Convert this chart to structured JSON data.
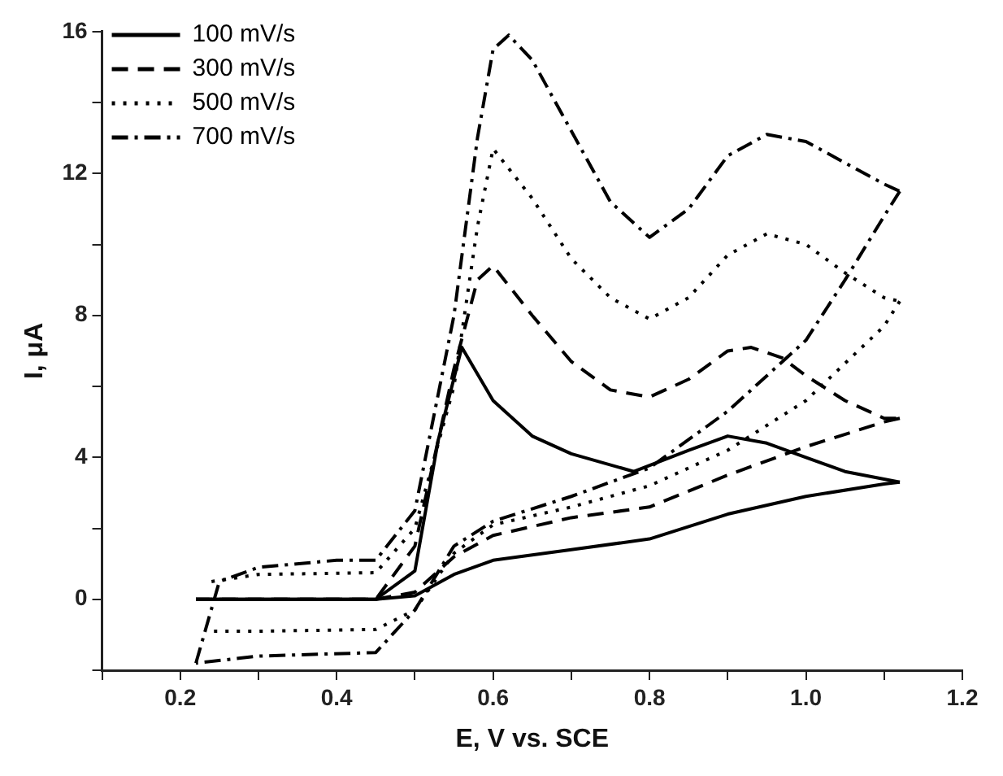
{
  "chart_data": {
    "type": "line",
    "xlabel": "E, V vs. SCE",
    "ylabel": "I, μA",
    "xlim": [
      0.1,
      1.2
    ],
    "ylim": [
      -2,
      16
    ],
    "xticks": [
      {
        "value": 0.1,
        "label": null
      },
      0.2,
      {
        "value": 0.3,
        "label": null
      },
      0.4,
      {
        "value": 0.5,
        "label": null
      },
      0.6,
      {
        "value": 0.7,
        "label": null
      },
      0.8,
      {
        "value": 0.9,
        "label": null
      },
      {
        "value": 1.0,
        "label": "1.0"
      },
      {
        "value": 1.1,
        "label": null
      },
      1.2
    ],
    "yticks": [
      {
        "value": -2,
        "label": null
      },
      0,
      {
        "value": 2,
        "label": null
      },
      4,
      {
        "value": 6,
        "label": null
      },
      8,
      {
        "value": 10,
        "label": null
      },
      12,
      {
        "value": 14,
        "label": null
      },
      16
    ],
    "grid": false,
    "legend": "top left",
    "marker": "none",
    "series": [
      {
        "name": "100 mV/s",
        "color": "#000000",
        "line_style": "solid",
        "x": [
          0.22,
          0.3,
          0.4,
          0.45,
          0.5,
          0.53,
          0.56,
          0.6,
          0.65,
          0.7,
          0.78,
          0.85,
          0.9,
          0.95,
          1.0,
          1.05,
          1.12
        ],
        "values": [
          0,
          0,
          0,
          0,
          0.8,
          4.5,
          7.1,
          5.6,
          4.6,
          4.1,
          3.6,
          4.2,
          4.6,
          4.4,
          4.0,
          3.6,
          3.3
        ]
      },
      {
        "color": "#000000",
        "line_style": "solid",
        "x": [
          1.12,
          1.1,
          1.0,
          0.9,
          0.8,
          0.7,
          0.6,
          0.55,
          0.5,
          0.45,
          0.3,
          0.22
        ],
        "values": [
          3.3,
          3.25,
          2.9,
          2.4,
          1.7,
          1.4,
          1.1,
          0.7,
          0.1,
          0,
          0,
          0
        ]
      },
      {
        "name": "300 mV/s",
        "color": "#000000",
        "line_style": "dashed",
        "x": [
          0.22,
          0.3,
          0.45,
          0.5,
          0.55,
          0.58,
          0.6,
          0.65,
          0.7,
          0.75,
          0.8,
          0.85,
          0.9,
          0.93,
          0.97,
          1.0,
          1.05,
          1.1,
          1.12
        ],
        "values": [
          0,
          0,
          0,
          1.5,
          6.5,
          9.0,
          9.4,
          8.0,
          6.7,
          5.9,
          5.7,
          6.2,
          7.0,
          7.1,
          6.8,
          6.3,
          5.6,
          5.1,
          5.1
        ]
      },
      {
        "color": "#000000",
        "line_style": "dashed",
        "x": [
          1.12,
          1.1,
          1.0,
          0.9,
          0.8,
          0.7,
          0.6,
          0.55,
          0.5,
          0.45,
          0.3,
          0.22
        ],
        "values": [
          5.1,
          5.0,
          4.3,
          3.5,
          2.6,
          2.3,
          1.8,
          1.2,
          0.2,
          0,
          0,
          0
        ]
      },
      {
        "name": "500 mV/s",
        "color": "#000000",
        "line_style": "dotted",
        "x": [
          0.24,
          0.3,
          0.45,
          0.5,
          0.55,
          0.58,
          0.6,
          0.65,
          0.7,
          0.75,
          0.8,
          0.85,
          0.9,
          0.95,
          1.0,
          1.05,
          1.1,
          1.12
        ],
        "values": [
          0.5,
          0.7,
          0.75,
          2.0,
          6.0,
          10.5,
          12.7,
          11.3,
          9.6,
          8.5,
          7.9,
          8.5,
          9.7,
          10.3,
          10.0,
          9.2,
          8.5,
          8.4
        ]
      },
      {
        "color": "#000000",
        "line_style": "dotted",
        "x": [
          1.12,
          1.1,
          1.0,
          0.9,
          0.8,
          0.7,
          0.6,
          0.55,
          0.5,
          0.45,
          0.3,
          0.24
        ],
        "values": [
          8.4,
          7.7,
          5.6,
          4.2,
          3.2,
          2.6,
          2.1,
          1.3,
          -0.3,
          -0.85,
          -0.9,
          -0.9
        ]
      },
      {
        "name": "700 mV/s",
        "color": "#000000",
        "line_style": "dashdot",
        "x": [
          0.22,
          0.25,
          0.3,
          0.4,
          0.45,
          0.5,
          0.55,
          0.58,
          0.6,
          0.62,
          0.65,
          0.7,
          0.75,
          0.8,
          0.85,
          0.9,
          0.95,
          1.0,
          1.05,
          1.1,
          1.12
        ],
        "values": [
          -1.8,
          0.5,
          0.9,
          1.1,
          1.1,
          2.5,
          8.0,
          13.0,
          15.5,
          15.9,
          15.2,
          13.2,
          11.2,
          10.2,
          11.0,
          12.5,
          13.1,
          12.9,
          12.3,
          11.7,
          11.5
        ]
      },
      {
        "color": "#000000",
        "line_style": "dashdot",
        "x": [
          1.12,
          1.1,
          1.05,
          1.0,
          0.95,
          0.9,
          0.8,
          0.7,
          0.6,
          0.55,
          0.5,
          0.45,
          0.3,
          0.22
        ],
        "values": [
          11.5,
          10.8,
          9.0,
          7.3,
          6.3,
          5.3,
          3.7,
          2.9,
          2.2,
          1.5,
          -0.3,
          -1.5,
          -1.6,
          -1.8
        ]
      }
    ]
  }
}
